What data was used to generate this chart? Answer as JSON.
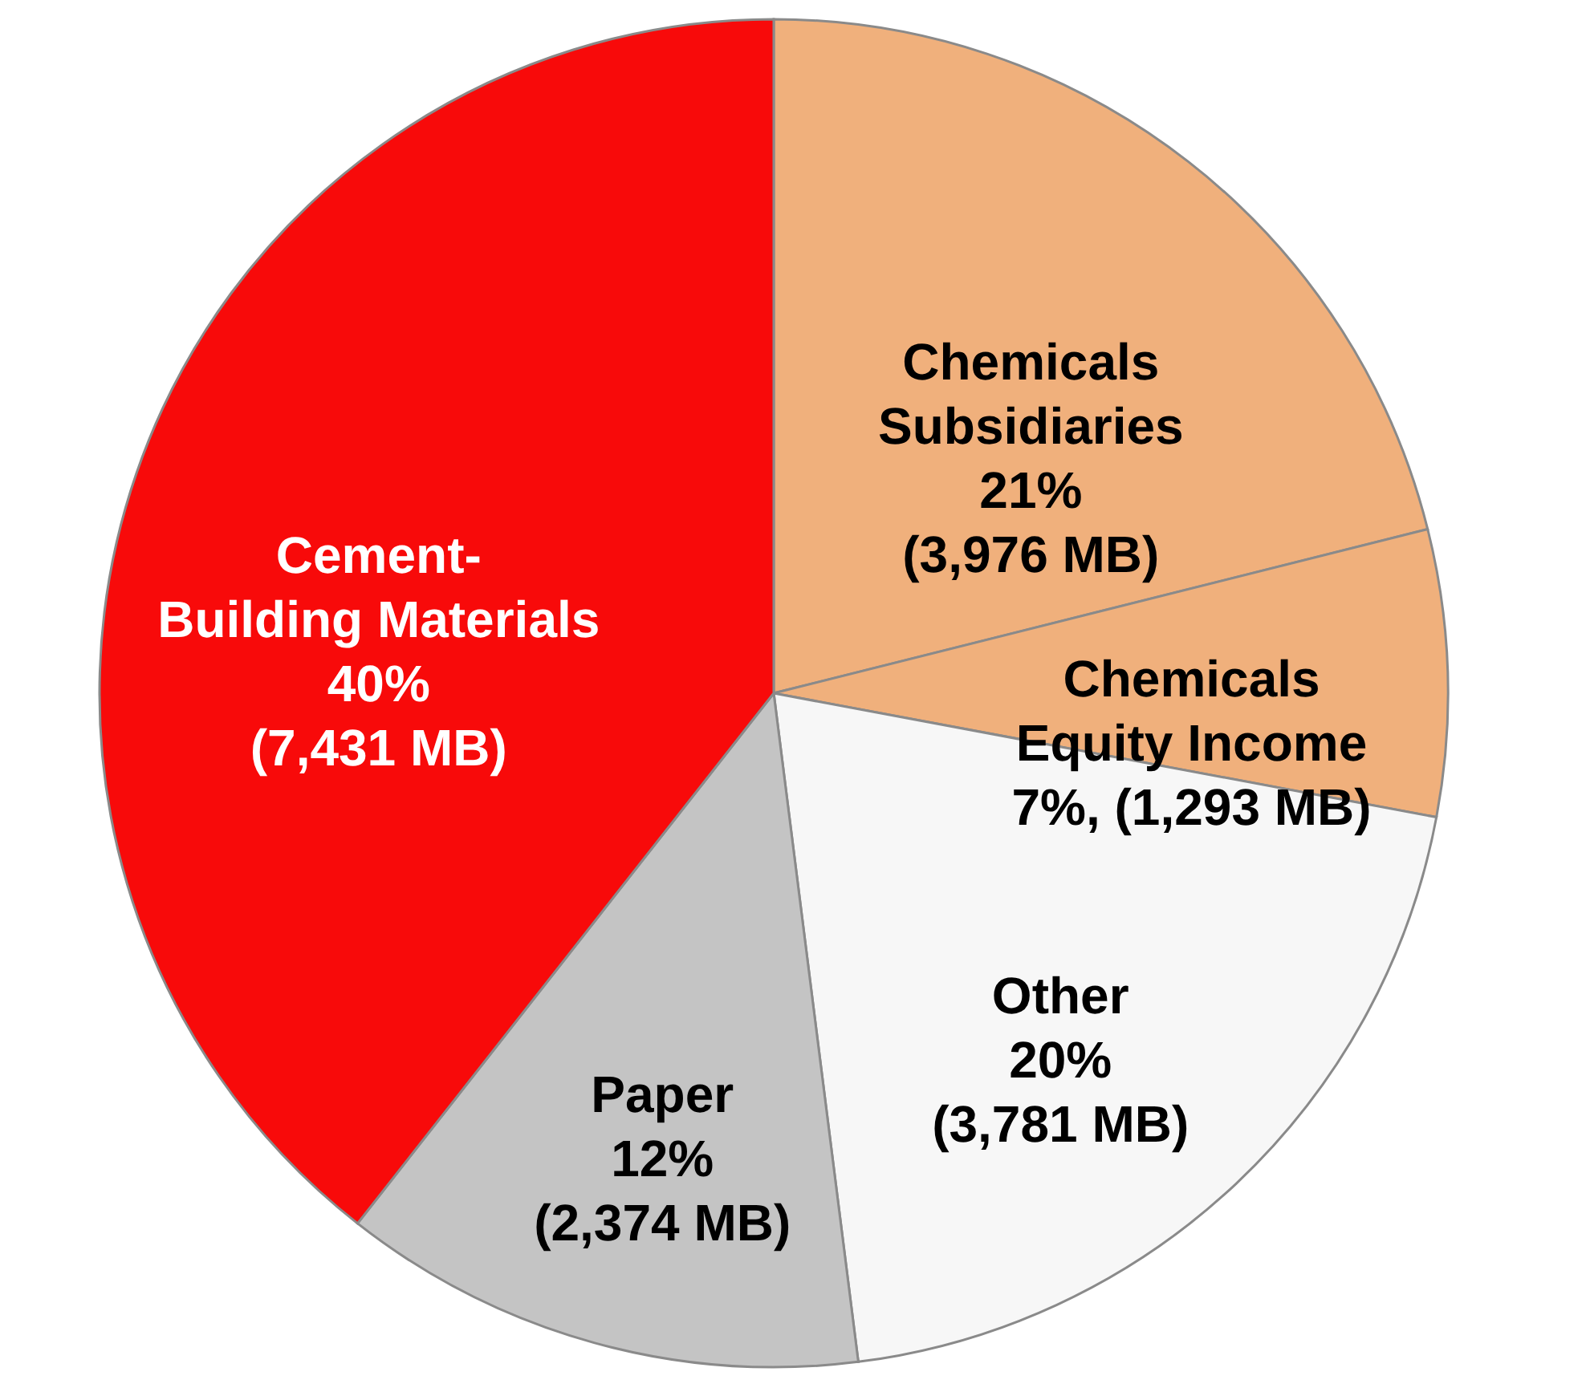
{
  "chart_data": {
    "type": "pie",
    "categories": [
      "Chemicals\nSubsidiaries",
      "Chemicals\nEquity Income",
      "Other",
      "Paper",
      "Cement-\nBuilding Materials"
    ],
    "values": [
      3976,
      1293,
      3781,
      2374,
      7431
    ],
    "value_labels": [
      "21%\n(3,976 MB)",
      "7%, (1,293 MB)",
      "20%\n(3,781 MB)",
      "12%\n(2,374 MB)",
      "40%\n(7,431 MB)"
    ],
    "colors": [
      "#f0b07c",
      "#f0b07c",
      "#f7f7f7",
      "#c4c4c4",
      "#f80a0a"
    ]
  }
}
